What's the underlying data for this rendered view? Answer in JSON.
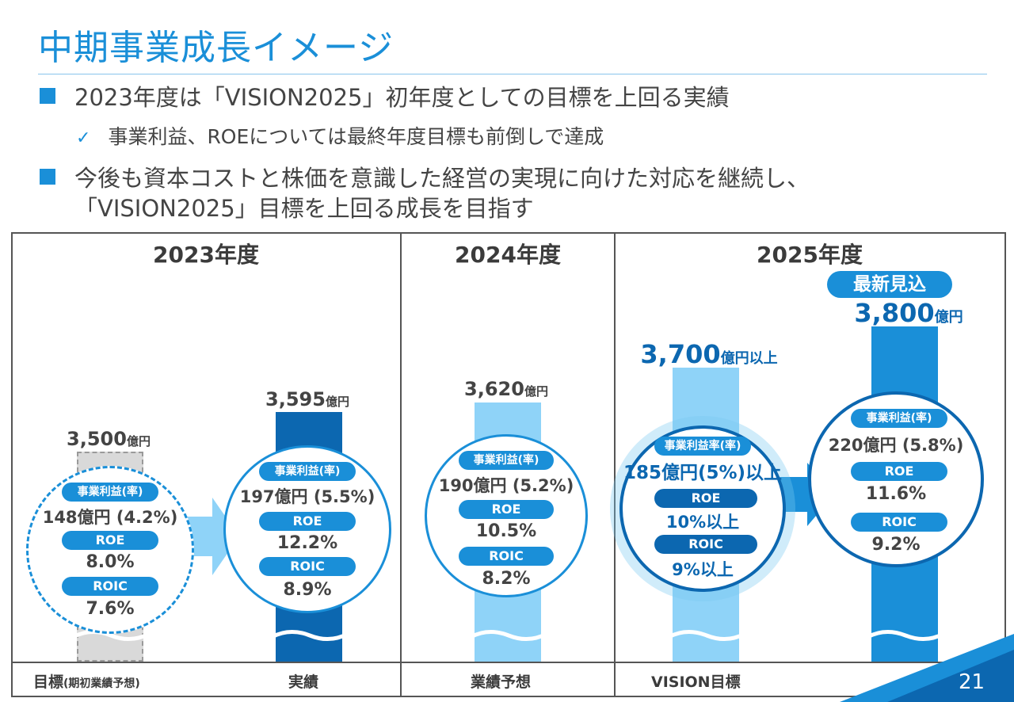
{
  "title": "中期事業成長イメージ",
  "bullets": [
    "2023年度は「VISION2025」初年度としての目標を上回る実績",
    "今後も資本コストと株価を意識した経営の実現に向けた対応を継続し、"
  ],
  "sub_bullet": "事業利益、ROEについては最終年度目標も前倒しで達成",
  "bullet2_cont": "「VISION2025」目標を上回る成長を目指す",
  "years": [
    "2023年度",
    "2024年度",
    "2025年度"
  ],
  "badge": "最新見込",
  "columns": {
    "target2023": {
      "value": "3,500",
      "unit": "億円",
      "pill1": "事業利益(率)",
      "line1": "148億円 (4.2%)",
      "pill2": "ROE",
      "line2": "8.0%",
      "pill3": "ROIC",
      "line3": "7.6%",
      "label": "目標",
      "label_small": "(期初業績予想)"
    },
    "actual2023": {
      "value": "3,595",
      "unit": "億円",
      "pill1": "事業利益(率)",
      "line1": "197億円 (5.5%)",
      "pill2": "ROE",
      "line2": "12.2%",
      "pill3": "ROIC",
      "line3": "8.9%",
      "label": "実績"
    },
    "forecast2024": {
      "value": "3,620",
      "unit": "億円",
      "pill1": "事業利益(率)",
      "line1": "190億円 (5.2%)",
      "pill2": "ROE",
      "line2": "10.5%",
      "pill3": "ROIC",
      "line3": "8.2%",
      "label": "業績予想"
    },
    "vision2025": {
      "value": "3,700",
      "unit": "億円以上",
      "pill1": "事業利益率(率)",
      "line1": "185億円(5%)以上",
      "pill2": "ROE",
      "line2": "10%以上",
      "pill3": "ROIC",
      "line3": "9%以上",
      "label": "VISION目標"
    },
    "latest2025": {
      "value": "3,800",
      "unit": "億円",
      "pill1": "事業利益(率)",
      "line1": "220億円 (5.8%)",
      "pill2": "ROE",
      "line2": "11.6%",
      "pill3": "ROIC",
      "line3": "9.2%"
    }
  },
  "page_number": "21",
  "colors": {
    "accent": "#1a8fd8",
    "dark_blue": "#0c67b0",
    "light_blue": "#8fd3f8",
    "grey": "#d9d9d9"
  }
}
